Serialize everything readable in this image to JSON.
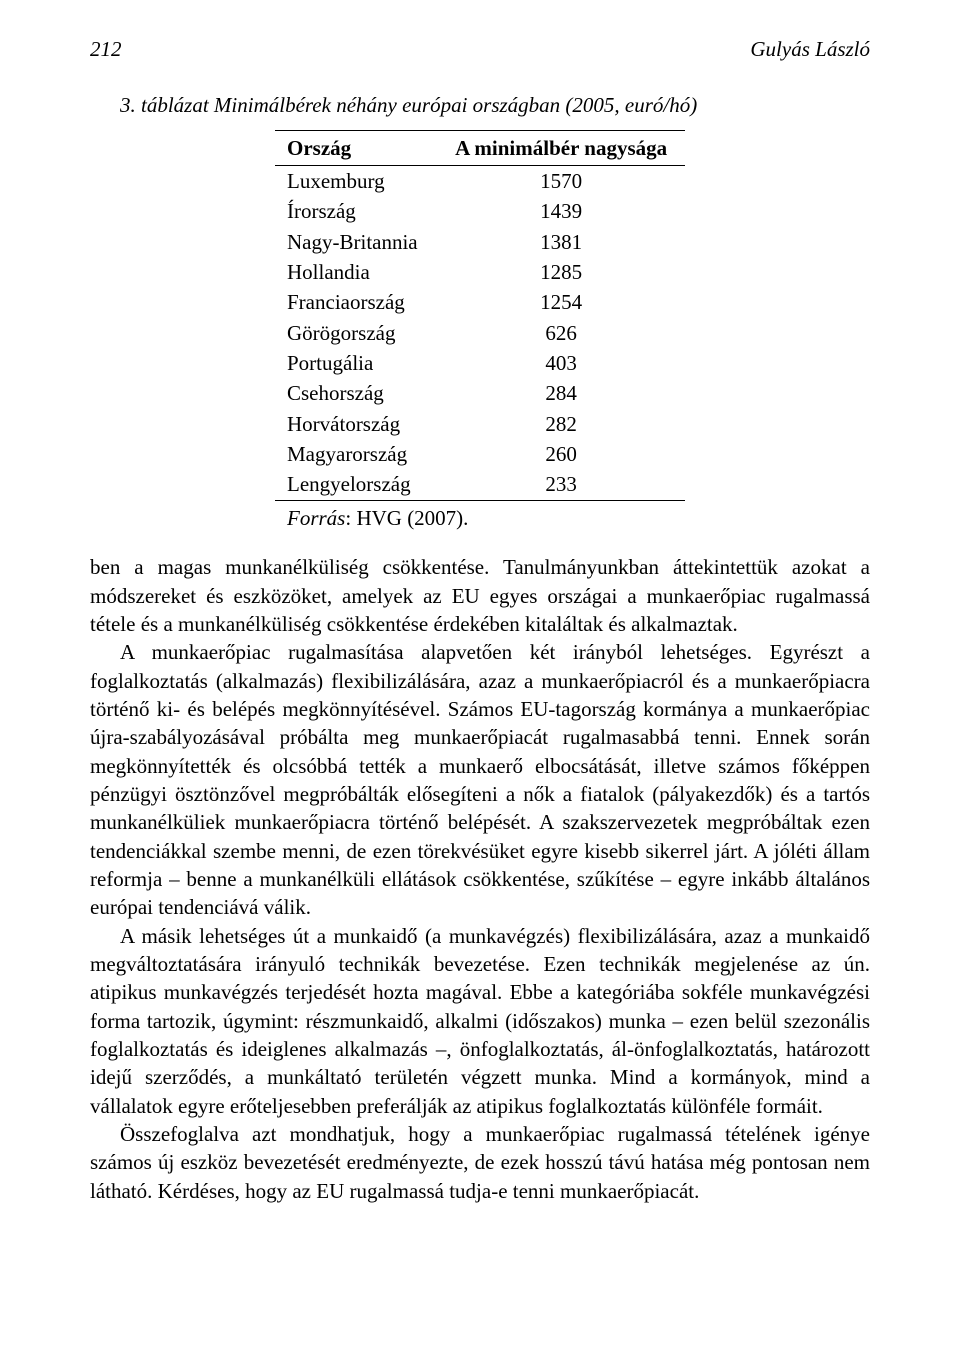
{
  "header": {
    "page_number": "212",
    "author": "Gulyás László"
  },
  "table": {
    "caption": "3. táblázat Minimálbérek néhány európai országban (2005, euró/hó)",
    "columns": [
      "Ország",
      "A minimálbér nagysága"
    ],
    "rows": [
      [
        "Luxemburg",
        "1570"
      ],
      [
        "Írország",
        "1439"
      ],
      [
        "Nagy-Britannia",
        "1381"
      ],
      [
        "Hollandia",
        "1285"
      ],
      [
        "Franciaország",
        "1254"
      ],
      [
        "Görögország",
        "626"
      ],
      [
        "Portugália",
        "403"
      ],
      [
        "Csehország",
        "284"
      ],
      [
        "Horvátország",
        "282"
      ],
      [
        "Magyarország",
        "260"
      ],
      [
        "Lengyelország",
        "233"
      ]
    ],
    "source_label": "Forrás",
    "source_value": ": HVG (2007)."
  },
  "paragraphs": {
    "p1": "ben a magas munkanélküliség csökkentése. Tanulmányunkban áttekintettük azokat a módszereket és eszközöket, amelyek az EU egyes országai a munkaerőpiac rugalmassá tétele és a munkanélküliség csökkentése érdekében kitaláltak és alkalmaztak.",
    "p2": "A munkaerőpiac rugalmasítása alapvetően két irányból lehetséges. Egyrészt a foglalkoztatás (alkalmazás) flexibilizálására, azaz a munkaerőpiacról és a munkaerőpiacra történő ki- és belépés megkönnyítésével. Számos EU-tagország kormánya a munkaerőpiac újra-szabályozásával próbálta meg munkaerőpiacát rugalmasabbá tenni. Ennek során megkönnyítették és olcsóbbá tették a munkaerő elbocsátását, illetve számos főképpen pénzügyi ösztönzővel megpróbálták elősegíteni a nők a fiatalok (pályakezdők) és a tartós munkanélküliek munkaerőpiacra történő belépését. A szakszervezetek megpróbáltak ezen tendenciákkal szembe menni, de ezen törekvésüket egyre kisebb sikerrel járt. A jóléti állam reformja – benne a munkanélküli ellátások csökkentése, szűkítése – egyre inkább általános európai tendenciává válik.",
    "p3": "A másik lehetséges út a munkaidő (a munkavégzés) flexibilizálására, azaz a munkaidő megváltoztatására irányuló technikák bevezetése. Ezen technikák megjelenése az ún. atipikus munkavégzés terjedését hozta magával. Ebbe a kategóriába sokféle munkavégzési forma tartozik, úgymint: részmunkaidő, alkalmi (időszakos) munka – ezen belül szezonális foglalkoztatás és ideiglenes alkalmazás –, önfoglalkoztatás, ál-önfoglalkoztatás, határozott idejű szerződés, a munkáltató területén végzett munka. Mind a kormányok, mind a vállalatok egyre erőteljesebben preferálják az atipikus foglalkoztatás különféle formáit.",
    "p4": "Összefoglalva azt mondhatjuk, hogy a munkaerőpiac rugalmassá tételének igénye számos új eszköz bevezetését eredményezte, de ezek hosszú távú hatása még pontosan nem látható. Kérdéses, hogy az EU rugalmassá tudja-e tenni munkaerőpiacát."
  }
}
